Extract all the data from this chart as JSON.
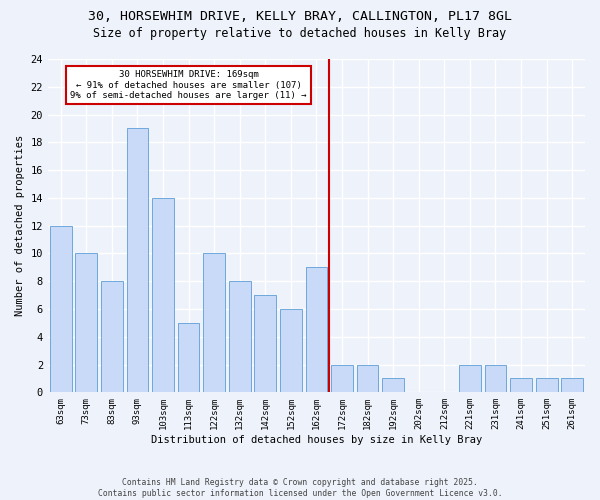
{
  "title_line1": "30, HORSEWHIM DRIVE, KELLY BRAY, CALLINGTON, PL17 8GL",
  "title_line2": "Size of property relative to detached houses in Kelly Bray",
  "xlabel": "Distribution of detached houses by size in Kelly Bray",
  "ylabel": "Number of detached properties",
  "categories": [
    "63sqm",
    "73sqm",
    "83sqm",
    "93sqm",
    "103sqm",
    "113sqm",
    "122sqm",
    "132sqm",
    "142sqm",
    "152sqm",
    "162sqm",
    "172sqm",
    "182sqm",
    "192sqm",
    "202sqm",
    "212sqm",
    "221sqm",
    "231sqm",
    "241sqm",
    "251sqm",
    "261sqm"
  ],
  "values": [
    12,
    10,
    8,
    19,
    14,
    5,
    10,
    8,
    7,
    6,
    9,
    2,
    2,
    1,
    0,
    0,
    2,
    2,
    1,
    1,
    1
  ],
  "bar_color": "#c9daf8",
  "bar_edge_color": "#6fa8dc",
  "annotation_line1": "30 HORSEWHIM DRIVE: 169sqm",
  "annotation_line2": "← 91% of detached houses are smaller (107)",
  "annotation_line3": "9% of semi-detached houses are larger (11) →",
  "annotation_box_color": "#ffffff",
  "annotation_box_edge": "#cc0000",
  "vline_color": "#cc0000",
  "ylim": [
    0,
    24
  ],
  "yticks": [
    0,
    2,
    4,
    6,
    8,
    10,
    12,
    14,
    16,
    18,
    20,
    22,
    24
  ],
  "footer_line1": "Contains HM Land Registry data © Crown copyright and database right 2025.",
  "footer_line2": "Contains public sector information licensed under the Open Government Licence v3.0.",
  "bg_color": "#eef2fa",
  "grid_color": "#ffffff"
}
